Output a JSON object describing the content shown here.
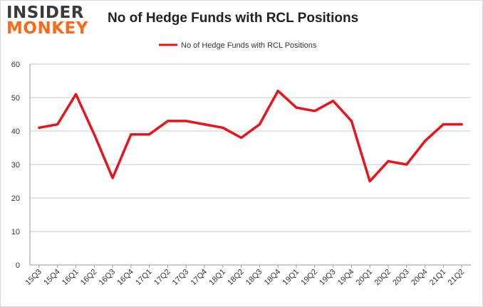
{
  "logo": {
    "line1": "INSIDER",
    "line2": "MONKEY"
  },
  "chart_data": {
    "type": "line",
    "title": "No of Hedge Funds with RCL Positions",
    "xlabel": "",
    "ylabel": "",
    "ylim": [
      0,
      60
    ],
    "yticks": [
      0,
      10,
      20,
      30,
      40,
      50,
      60
    ],
    "grid": true,
    "legend_position": "top-center",
    "categories": [
      "15Q3",
      "15Q4",
      "16Q1",
      "16Q2",
      "16Q3",
      "16Q4",
      "17Q1",
      "17Q2",
      "17Q3",
      "17Q4",
      "18Q1",
      "18Q2",
      "18Q3",
      "18Q4",
      "19Q1",
      "19Q2",
      "19Q3",
      "19Q4",
      "20Q1",
      "20Q2",
      "20Q3",
      "20Q4",
      "21Q1",
      "21Q2"
    ],
    "series": [
      {
        "name": "No of Hedge Funds with RCL Positions",
        "color": "#e8141b",
        "values": [
          41,
          42,
          51,
          39,
          26,
          39,
          39,
          43,
          43,
          42,
          41,
          38,
          42,
          52,
          47,
          46,
          49,
          43,
          25,
          31,
          30,
          37,
          42,
          42
        ]
      }
    ]
  }
}
